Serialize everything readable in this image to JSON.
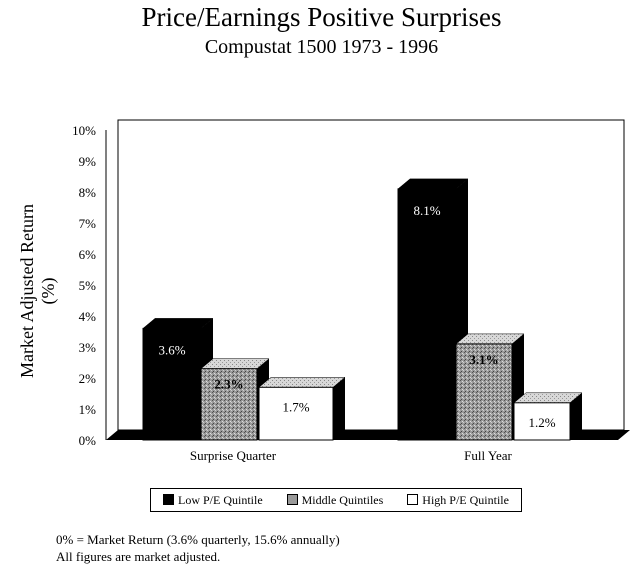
{
  "chart_data": {
    "type": "bar",
    "title": "Price/Earnings  Positive Surprises",
    "subtitle": "Compustat 1500 1973 - 1996",
    "ylabel": "Market Adjusted Return (%)",
    "xlabel": "",
    "ylim": [
      0,
      10
    ],
    "yticks": [
      "0%",
      "1%",
      "2%",
      "3%",
      "4%",
      "5%",
      "6%",
      "7%",
      "8%",
      "9%",
      "10%"
    ],
    "categories": [
      "Surprise Quarter",
      "Full Year"
    ],
    "series": [
      {
        "name": "Low P/E Quintile",
        "values": [
          3.6,
          8.1
        ],
        "labels": [
          "3.6%",
          "8.1%"
        ],
        "color": "#000000"
      },
      {
        "name": "Middle Quintiles",
        "values": [
          2.3,
          3.1
        ],
        "labels": [
          "2.3%",
          "3.1%"
        ],
        "color": "#999999"
      },
      {
        "name": "High P/E Quintile",
        "values": [
          1.7,
          1.2
        ],
        "labels": [
          "1.7%",
          "1.2%"
        ],
        "color": "#ffffff"
      }
    ],
    "legend_position": "bottom"
  },
  "notes": [
    "0% = Market Return (3.6% quarterly, 15.6% annually)",
    "All figures are market adjusted."
  ]
}
